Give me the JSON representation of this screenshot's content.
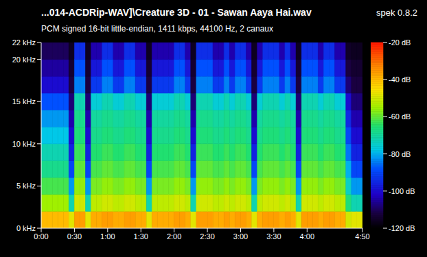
{
  "chart_data": {
    "type": "heatmap",
    "title": "...014-ACDRip-WAV]\\Creature 3D - 01 - Sawan Aaya Hai.wav",
    "subtitle": "PCM signed 16-bit little-endian, 1411 kbps, 44100 Hz, 2 canaux",
    "annotations": [
      "spek 0.8.2"
    ],
    "xlim": [
      0,
      290
    ],
    "ylim": [
      0,
      22
    ],
    "xticks": [
      {
        "value": 0,
        "label": "0:00"
      },
      {
        "value": 30,
        "label": "0:30"
      },
      {
        "value": 60,
        "label": "1:00"
      },
      {
        "value": 90,
        "label": "1:30"
      },
      {
        "value": 120,
        "label": "2:00"
      },
      {
        "value": 150,
        "label": "2:30"
      },
      {
        "value": 180,
        "label": "3:00"
      },
      {
        "value": 210,
        "label": "3:30"
      },
      {
        "value": 240,
        "label": "4:00"
      },
      {
        "value": 290,
        "label": "4:50"
      }
    ],
    "yticks": [
      {
        "value": 0,
        "label": "0 kHz"
      },
      {
        "value": 5,
        "label": "5 kHz"
      },
      {
        "value": 10,
        "label": "10 kHz"
      },
      {
        "value": 15,
        "label": "15 kHz"
      },
      {
        "value": 20,
        "label": "20 kHz"
      },
      {
        "value": 22,
        "label": "22 kHz"
      }
    ],
    "x_bins": [
      0,
      5,
      10,
      15,
      20,
      25,
      30,
      35,
      40,
      45,
      50,
      55,
      60,
      65,
      70,
      75,
      80,
      85,
      90,
      95,
      100,
      105,
      110,
      115,
      120,
      125,
      130,
      135,
      140,
      145,
      150,
      155,
      160,
      165,
      170,
      175,
      180,
      185,
      190,
      195,
      200,
      205,
      210,
      215,
      220,
      225,
      230,
      235,
      240,
      245,
      250,
      255,
      260,
      265,
      270,
      275,
      280,
      285,
      290
    ],
    "y_bins": [
      0,
      2,
      4,
      6,
      8,
      10,
      12,
      14,
      16,
      18,
      20,
      22
    ],
    "cells": [
      [
        -40,
        -55,
        -62,
        -68,
        -72,
        -78,
        -82,
        -88,
        -100,
        -105,
        -110
      ],
      [
        -40,
        -55,
        -62,
        -68,
        -72,
        -78,
        -82,
        -88,
        -100,
        -105,
        -110
      ],
      [
        -40,
        -55,
        -62,
        -68,
        -72,
        -78,
        -82,
        -88,
        -100,
        -105,
        -110
      ],
      [
        -40,
        -55,
        -62,
        -68,
        -72,
        -78,
        -82,
        -88,
        -100,
        -105,
        -110
      ],
      [
        -40,
        -55,
        -62,
        -68,
        -72,
        -78,
        -82,
        -88,
        -100,
        -105,
        -110
      ],
      [
        -48,
        -72,
        -82,
        -90,
        -96,
        -100,
        -104,
        -108,
        -112,
        -114,
        -116
      ],
      [
        -36,
        -50,
        -56,
        -60,
        -63,
        -66,
        -68,
        -72,
        -84,
        -88,
        -94
      ],
      [
        -36,
        -50,
        -56,
        -60,
        -63,
        -66,
        -68,
        -72,
        -84,
        -88,
        -94
      ],
      [
        -48,
        -72,
        -82,
        -90,
        -96,
        -100,
        -104,
        -108,
        -112,
        -114,
        -116
      ],
      [
        -38,
        -52,
        -58,
        -62,
        -65,
        -68,
        -70,
        -76,
        -92,
        -98,
        -104
      ],
      [
        -38,
        -52,
        -58,
        -62,
        -65,
        -68,
        -70,
        -76,
        -92,
        -98,
        -104
      ],
      [
        -36,
        -50,
        -56,
        -60,
        -63,
        -66,
        -68,
        -72,
        -84,
        -88,
        -94
      ],
      [
        -36,
        -50,
        -56,
        -60,
        -63,
        -66,
        -68,
        -72,
        -84,
        -88,
        -94
      ],
      [
        -38,
        -52,
        -58,
        -62,
        -65,
        -68,
        -70,
        -76,
        -92,
        -98,
        -104
      ],
      [
        -38,
        -52,
        -58,
        -62,
        -65,
        -68,
        -70,
        -76,
        -92,
        -98,
        -104
      ],
      [
        -36,
        -50,
        -56,
        -60,
        -63,
        -66,
        -68,
        -72,
        -84,
        -88,
        -94
      ],
      [
        -36,
        -50,
        -56,
        -60,
        -63,
        -66,
        -68,
        -72,
        -84,
        -88,
        -94
      ],
      [
        -38,
        -52,
        -58,
        -62,
        -65,
        -68,
        -70,
        -76,
        -92,
        -98,
        -104
      ],
      [
        -38,
        -52,
        -58,
        -62,
        -65,
        -68,
        -70,
        -76,
        -92,
        -98,
        -104
      ],
      [
        -48,
        -72,
        -82,
        -90,
        -96,
        -100,
        -104,
        -108,
        -112,
        -114,
        -116
      ],
      [
        -38,
        -52,
        -58,
        -62,
        -65,
        -68,
        -70,
        -76,
        -92,
        -98,
        -104
      ],
      [
        -38,
        -52,
        -58,
        -62,
        -65,
        -68,
        -70,
        -76,
        -92,
        -98,
        -104
      ],
      [
        -38,
        -52,
        -58,
        -62,
        -65,
        -68,
        -70,
        -76,
        -92,
        -98,
        -104
      ],
      [
        -38,
        -52,
        -58,
        -62,
        -65,
        -68,
        -70,
        -76,
        -92,
        -98,
        -104
      ],
      [
        -36,
        -50,
        -56,
        -60,
        -63,
        -66,
        -68,
        -72,
        -84,
        -88,
        -94
      ],
      [
        -36,
        -50,
        -56,
        -60,
        -63,
        -66,
        -68,
        -72,
        -84,
        -88,
        -94
      ],
      [
        -38,
        -52,
        -58,
        -62,
        -65,
        -68,
        -70,
        -76,
        -92,
        -98,
        -104
      ],
      [
        -48,
        -72,
        -82,
        -90,
        -96,
        -100,
        -104,
        -108,
        -112,
        -114,
        -116
      ],
      [
        -36,
        -50,
        -56,
        -60,
        -63,
        -66,
        -68,
        -72,
        -84,
        -88,
        -94
      ],
      [
        -36,
        -50,
        -56,
        -60,
        -63,
        -66,
        -68,
        -72,
        -84,
        -88,
        -94
      ],
      [
        -36,
        -50,
        -56,
        -60,
        -63,
        -66,
        -68,
        -72,
        -84,
        -88,
        -94
      ],
      [
        -38,
        -52,
        -58,
        -62,
        -65,
        -68,
        -70,
        -76,
        -92,
        -98,
        -104
      ],
      [
        -38,
        -52,
        -58,
        -62,
        -65,
        -68,
        -70,
        -76,
        -92,
        -98,
        -104
      ],
      [
        -36,
        -50,
        -56,
        -60,
        -63,
        -66,
        -68,
        -72,
        -84,
        -88,
        -94
      ],
      [
        -38,
        -52,
        -58,
        -62,
        -65,
        -68,
        -70,
        -76,
        -92,
        -98,
        -104
      ],
      [
        -36,
        -50,
        -56,
        -60,
        -63,
        -66,
        -68,
        -72,
        -84,
        -88,
        -94
      ],
      [
        -36,
        -50,
        -56,
        -60,
        -63,
        -66,
        -68,
        -72,
        -84,
        -88,
        -94
      ],
      [
        -38,
        -52,
        -58,
        -62,
        -65,
        -68,
        -70,
        -76,
        -92,
        -98,
        -104
      ],
      [
        -48,
        -72,
        -82,
        -90,
        -96,
        -100,
        -104,
        -108,
        -112,
        -114,
        -116
      ],
      [
        -38,
        -52,
        -58,
        -62,
        -65,
        -68,
        -70,
        -76,
        -92,
        -98,
        -104
      ],
      [
        -36,
        -50,
        -56,
        -60,
        -63,
        -66,
        -68,
        -72,
        -84,
        -88,
        -94
      ],
      [
        -36,
        -50,
        -56,
        -60,
        -63,
        -66,
        -68,
        -72,
        -84,
        -88,
        -94
      ],
      [
        -36,
        -50,
        -56,
        -60,
        -63,
        -66,
        -68,
        -72,
        -84,
        -88,
        -94
      ],
      [
        -38,
        -52,
        -58,
        -62,
        -65,
        -68,
        -70,
        -76,
        -92,
        -98,
        -104
      ],
      [
        -36,
        -50,
        -56,
        -60,
        -63,
        -66,
        -68,
        -72,
        -84,
        -88,
        -94
      ],
      [
        -38,
        -52,
        -58,
        -62,
        -65,
        -68,
        -70,
        -76,
        -92,
        -98,
        -104
      ],
      [
        -48,
        -72,
        -82,
        -90,
        -96,
        -100,
        -104,
        -108,
        -112,
        -114,
        -116
      ],
      [
        -36,
        -50,
        -56,
        -60,
        -63,
        -66,
        -68,
        -72,
        -84,
        -88,
        -94
      ],
      [
        -36,
        -50,
        -56,
        -60,
        -63,
        -66,
        -68,
        -72,
        -84,
        -88,
        -94
      ],
      [
        -36,
        -50,
        -56,
        -60,
        -63,
        -66,
        -68,
        -72,
        -84,
        -88,
        -94
      ],
      [
        -38,
        -52,
        -58,
        -62,
        -65,
        -68,
        -70,
        -76,
        -92,
        -98,
        -104
      ],
      [
        -36,
        -50,
        -56,
        -60,
        -63,
        -66,
        -68,
        -72,
        -84,
        -88,
        -94
      ],
      [
        -36,
        -50,
        -56,
        -60,
        -63,
        -66,
        -68,
        -72,
        -84,
        -88,
        -94
      ],
      [
        -38,
        -52,
        -58,
        -62,
        -65,
        -68,
        -70,
        -76,
        -92,
        -98,
        -104
      ],
      [
        -38,
        -52,
        -58,
        -62,
        -65,
        -68,
        -70,
        -76,
        -92,
        -98,
        -104
      ],
      [
        -50,
        -66,
        -74,
        -80,
        -85,
        -90,
        -95,
        -100,
        -108,
        -112,
        -115
      ],
      [
        -48,
        -72,
        -82,
        -90,
        -96,
        -100,
        -104,
        -108,
        -112,
        -114,
        -116
      ],
      [
        -48,
        -72,
        -82,
        -90,
        -96,
        -100,
        -104,
        -108,
        -112,
        -114,
        -116
      ]
    ],
    "colorbar": {
      "range": [
        -120,
        -20
      ],
      "ticks": [
        {
          "value": -20,
          "label": "-20 dB"
        },
        {
          "value": -40,
          "label": "-40 dB"
        },
        {
          "value": -60,
          "label": "-60 dB"
        },
        {
          "value": -80,
          "label": "-80 dB"
        },
        {
          "value": -100,
          "label": "-100 dB"
        },
        {
          "value": -120,
          "label": "-120 dB"
        }
      ]
    }
  }
}
